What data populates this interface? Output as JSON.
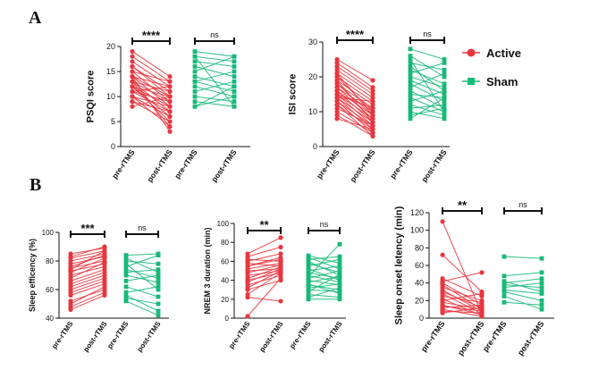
{
  "panel_labels": {
    "a": "A",
    "b": "B"
  },
  "legend": {
    "entries": [
      {
        "name": "Active",
        "color": "#e8363f",
        "marker": "circle"
      },
      {
        "name": "Sham",
        "color": "#17b978",
        "marker": "square"
      }
    ]
  },
  "chart_data": [
    {
      "type": "scatter",
      "id": "psqi",
      "ylabel": "PSQI score",
      "ylim": [
        0,
        20
      ],
      "yticks": [
        0,
        5,
        10,
        15,
        20
      ],
      "categories": [
        "pre-rTMS",
        "post-rTMS",
        "pre-rTMS",
        "post-rTMS"
      ],
      "significance": [
        {
          "group": "Active",
          "label": "****"
        },
        {
          "group": "Sham",
          "label": "ns"
        }
      ],
      "series": [
        {
          "name": "Active",
          "pairs": [
            [
              19,
              14
            ],
            [
              18,
              13
            ],
            [
              17,
              12
            ],
            [
              16,
              11
            ],
            [
              16,
              10
            ],
            [
              15,
              13
            ],
            [
              15,
              9
            ],
            [
              14,
              12
            ],
            [
              14,
              10
            ],
            [
              14,
              8
            ],
            [
              13,
              11
            ],
            [
              13,
              9
            ],
            [
              13,
              7
            ],
            [
              12,
              10
            ],
            [
              12,
              8
            ],
            [
              12,
              6
            ],
            [
              12,
              5
            ],
            [
              11,
              9
            ],
            [
              11,
              7
            ],
            [
              11,
              12
            ],
            [
              10,
              8
            ],
            [
              10,
              6
            ],
            [
              10,
              4
            ],
            [
              9,
              7
            ],
            [
              9,
              5
            ],
            [
              8,
              10
            ],
            [
              13,
              4
            ],
            [
              14,
              3
            ]
          ]
        },
        {
          "name": "Sham",
          "pairs": [
            [
              19,
              18
            ],
            [
              18,
              17
            ],
            [
              17,
              16
            ],
            [
              16,
              14
            ],
            [
              15,
              18
            ],
            [
              14,
              12
            ],
            [
              13,
              15
            ],
            [
              13,
              11
            ],
            [
              12,
              10
            ],
            [
              11,
              13
            ],
            [
              10,
              9
            ],
            [
              9,
              8
            ],
            [
              8,
              10
            ],
            [
              8,
              12
            ],
            [
              18,
              8
            ]
          ]
        }
      ]
    },
    {
      "type": "scatter",
      "id": "isi",
      "ylabel": "ISI score",
      "ylim": [
        0,
        30
      ],
      "yticks": [
        0,
        10,
        20,
        30
      ],
      "categories": [
        "pre-rTMS",
        "post-rTMS",
        "pre-rTMS",
        "post-rTMS"
      ],
      "significance": [
        {
          "group": "Active",
          "label": "****"
        },
        {
          "group": "Sham",
          "label": "ns"
        }
      ],
      "series": [
        {
          "name": "Active",
          "pairs": [
            [
              25,
              19
            ],
            [
              24,
              17
            ],
            [
              23,
              16
            ],
            [
              22,
              15
            ],
            [
              21,
              14
            ],
            [
              20,
              13
            ],
            [
              20,
              10
            ],
            [
              19,
              12
            ],
            [
              18,
              11
            ],
            [
              18,
              9
            ],
            [
              17,
              10
            ],
            [
              17,
              8
            ],
            [
              16,
              9
            ],
            [
              16,
              7
            ],
            [
              15,
              8
            ],
            [
              15,
              6
            ],
            [
              14,
              7
            ],
            [
              14,
              5
            ],
            [
              13,
              6
            ],
            [
              13,
              4
            ],
            [
              12,
              5
            ],
            [
              12,
              3
            ],
            [
              11,
              6
            ],
            [
              10,
              4
            ],
            [
              9,
              3
            ],
            [
              8,
              5
            ],
            [
              15,
              11
            ],
            [
              14,
              13
            ],
            [
              21,
              9
            ],
            [
              19,
              7
            ]
          ]
        },
        {
          "name": "Sham",
          "pairs": [
            [
              28,
              25
            ],
            [
              26,
              20
            ],
            [
              24,
              22
            ],
            [
              22,
              18
            ],
            [
              21,
              24
            ],
            [
              20,
              17
            ],
            [
              19,
              15
            ],
            [
              18,
              13
            ],
            [
              17,
              21
            ],
            [
              16,
              11
            ],
            [
              15,
              14
            ],
            [
              14,
              10
            ],
            [
              13,
              16
            ],
            [
              12,
              9
            ],
            [
              11,
              12
            ],
            [
              10,
              8
            ],
            [
              9,
              11
            ],
            [
              8,
              14
            ],
            [
              25,
              10
            ],
            [
              23,
              16
            ]
          ]
        }
      ]
    },
    {
      "type": "scatter",
      "id": "sleep-efficiency",
      "ylabel": "Sleep efficency (%)",
      "ylim": [
        40,
        100
      ],
      "yticks": [
        40,
        60,
        80,
        100
      ],
      "categories": [
        "pre-rTMS",
        "post-rTMS",
        "pre-rTMS",
        "post-rTMS"
      ],
      "significance": [
        {
          "group": "Active",
          "label": "***"
        },
        {
          "group": "Sham",
          "label": "ns"
        }
      ],
      "series": [
        {
          "name": "Active",
          "pairs": [
            [
              85,
              89
            ],
            [
              82,
              87
            ],
            [
              80,
              85
            ],
            [
              78,
              83
            ],
            [
              76,
              84
            ],
            [
              75,
              80
            ],
            [
              73,
              78
            ],
            [
              72,
              82
            ],
            [
              70,
              76
            ],
            [
              68,
              79
            ],
            [
              66,
              74
            ],
            [
              64,
              72
            ],
            [
              62,
              70
            ],
            [
              60,
              68
            ],
            [
              58,
              66
            ],
            [
              56,
              64
            ],
            [
              52,
              60
            ],
            [
              50,
              62
            ],
            [
              48,
              58
            ],
            [
              46,
              56
            ],
            [
              74,
              87
            ],
            [
              83,
              90
            ]
          ]
        },
        {
          "name": "Sham",
          "pairs": [
            [
              84,
              85
            ],
            [
              82,
              72
            ],
            [
              80,
              78
            ],
            [
              78,
              60
            ],
            [
              76,
              84
            ],
            [
              74,
              68
            ],
            [
              72,
              74
            ],
            [
              70,
              65
            ],
            [
              66,
              70
            ],
            [
              62,
              55
            ],
            [
              58,
              62
            ],
            [
              56,
              45
            ],
            [
              54,
              50
            ],
            [
              52,
              42
            ]
          ]
        }
      ]
    },
    {
      "type": "scatter",
      "id": "nrem3",
      "ylabel": "NREM 3 duration (min)",
      "ylim": [
        0,
        100
      ],
      "yticks": [
        0,
        20,
        40,
        60,
        80,
        100
      ],
      "categories": [
        "pre-rTMS",
        "post-rTMS",
        "pre-rTMS",
        "post-rTMS"
      ],
      "significance": [
        {
          "group": "Active",
          "label": "**"
        },
        {
          "group": "Sham",
          "label": "ns"
        }
      ],
      "series": [
        {
          "name": "Active",
          "pairs": [
            [
              68,
              85
            ],
            [
              65,
              75
            ],
            [
              62,
              60
            ],
            [
              60,
              68
            ],
            [
              58,
              55
            ],
            [
              55,
              62
            ],
            [
              52,
              58
            ],
            [
              50,
              52
            ],
            [
              48,
              56
            ],
            [
              45,
              50
            ],
            [
              42,
              54
            ],
            [
              40,
              48
            ],
            [
              38,
              52
            ],
            [
              35,
              45
            ],
            [
              32,
              50
            ],
            [
              30,
              40
            ],
            [
              25,
              48
            ],
            [
              22,
              18
            ],
            [
              2,
              42
            ],
            [
              55,
              64
            ]
          ]
        },
        {
          "name": "Sham",
          "pairs": [
            [
              66,
              58
            ],
            [
              64,
              52
            ],
            [
              62,
              65
            ],
            [
              60,
              45
            ],
            [
              58,
              48
            ],
            [
              55,
              62
            ],
            [
              52,
              40
            ],
            [
              50,
              55
            ],
            [
              48,
              42
            ],
            [
              45,
              38
            ],
            [
              42,
              50
            ],
            [
              40,
              35
            ],
            [
              38,
              44
            ],
            [
              35,
              30
            ],
            [
              32,
              36
            ],
            [
              30,
              28
            ],
            [
              28,
              46
            ],
            [
              25,
              22
            ],
            [
              22,
              32
            ],
            [
              20,
              20
            ],
            [
              44,
              78
            ],
            [
              36,
              26
            ]
          ]
        }
      ]
    },
    {
      "type": "scatter",
      "id": "sleep-onset",
      "ylabel": "Sleep onset letency (min)",
      "ylim": [
        0,
        120
      ],
      "yticks": [
        0,
        20,
        40,
        60,
        80,
        100,
        120
      ],
      "categories": [
        "pre-rTMS",
        "post-rTMS",
        "pre-rTMS",
        "post-rTMS"
      ],
      "significance": [
        {
          "group": "Active",
          "label": "**"
        },
        {
          "group": "Sham",
          "label": "ns"
        }
      ],
      "series": [
        {
          "name": "Active",
          "pairs": [
            [
              110,
              5
            ],
            [
              72,
              30
            ],
            [
              45,
              25
            ],
            [
              42,
              52
            ],
            [
              40,
              15
            ],
            [
              38,
              10
            ],
            [
              35,
              20
            ],
            [
              32,
              8
            ],
            [
              30,
              12
            ],
            [
              28,
              5
            ],
            [
              25,
              18
            ],
            [
              22,
              3
            ],
            [
              20,
              28
            ],
            [
              18,
              10
            ],
            [
              15,
              4
            ],
            [
              14,
              8
            ],
            [
              12,
              15
            ],
            [
              10,
              2
            ],
            [
              8,
              6
            ],
            [
              6,
              12
            ]
          ]
        },
        {
          "name": "Sham",
          "pairs": [
            [
              70,
              68
            ],
            [
              48,
              52
            ],
            [
              42,
              30
            ],
            [
              40,
              45
            ],
            [
              38,
              35
            ],
            [
              35,
              40
            ],
            [
              32,
              28
            ],
            [
              30,
              20
            ],
            [
              25,
              10
            ],
            [
              18,
              15
            ]
          ]
        }
      ]
    }
  ]
}
